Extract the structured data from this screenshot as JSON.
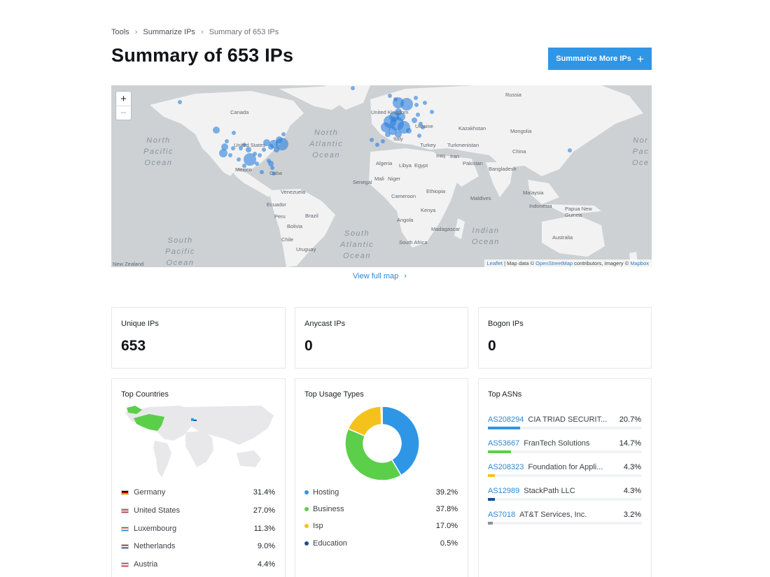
{
  "breadcrumb": {
    "items": [
      "Tools",
      "Summarize IPs"
    ],
    "current": "Summary of 653 IPs"
  },
  "page_title": "Summary of 653 IPs",
  "actions": {
    "summarize_more": "Summarize More IPs"
  },
  "map": {
    "zoom_in": "+",
    "zoom_out": "−",
    "attribution": {
      "leaflet": "Leaflet",
      "mid": " | Map data © ",
      "osm": "OpenStreetMap",
      "mid2": " contributors, Imagery © ",
      "mapbox": "Mapbox"
    },
    "labels": {
      "canada": "Canada",
      "russia": "Russia",
      "united_states": "United States",
      "mexico": "Mexico",
      "cuba": "Cuba",
      "venezuela": "Venezuela",
      "ecuador": "Ecuador",
      "peru": "Peru",
      "bolivia": "Bolivia",
      "brazil": "Brazil",
      "chile": "Chile",
      "uruguay": "Uruguay",
      "united_kingdom": "United Kingdom",
      "ukraine": "Ukraine",
      "kazakhstan": "Kazakhstan",
      "mongolia": "Mongolia",
      "turkey": "Turkey",
      "turkmenistan": "Turkmenistan",
      "iraq": "Iraq",
      "iran": "Iran",
      "pakistan": "Pakistan",
      "china": "China",
      "algeria": "Algeria",
      "libya": "Libya",
      "egypt": "Egypt",
      "senegal": "Senegal",
      "mali": "Mali",
      "niger": "Niger",
      "ethiopia": "Ethiopia",
      "kenya": "Kenya",
      "cameroon": "Cameroon",
      "angola": "Angola",
      "madagascar": "Madagascar",
      "south_africa": "South Africa",
      "bangladesh": "Bangladesh",
      "maldives": "Maldives",
      "malaysia": "Malaysia",
      "indonesia": "Indonesia",
      "papua_new_guinea": "Papua New Guinea",
      "australia": "Australia",
      "new_zealand": "New Zealand",
      "italy": "Italy"
    },
    "oceans": {
      "north_pacific": "North\nPacific\nOcean",
      "north_atlantic": "North\nAtlantic\nOcean",
      "south_pacific": "South\nPacific\nOcean",
      "south_atlantic": "South\nAtlantic\nOcean",
      "indian": "Indian\nOcean",
      "north_pacific_east": "Nor\nPac\nOce"
    }
  },
  "view_full_map": "View full map",
  "stats": [
    {
      "label": "Unique IPs",
      "value": "653"
    },
    {
      "label": "Anycast IPs",
      "value": "0"
    },
    {
      "label": "Bogon IPs",
      "value": "0"
    }
  ],
  "top_countries": {
    "title": "Top Countries",
    "items": [
      {
        "name": "Germany",
        "pct": "31.4%"
      },
      {
        "name": "United States",
        "pct": "27.0%"
      },
      {
        "name": "Luxembourg",
        "pct": "11.3%"
      },
      {
        "name": "Netherlands",
        "pct": "9.0%"
      },
      {
        "name": "Austria",
        "pct": "4.4%"
      }
    ]
  },
  "top_usage": {
    "title": "Top Usage Types",
    "items": [
      {
        "name": "Hosting",
        "pct": "39.2%",
        "value": 39.2,
        "color": "#2f96e6"
      },
      {
        "name": "Business",
        "pct": "37.8%",
        "value": 37.8,
        "color": "#5ccf4a"
      },
      {
        "name": "Isp",
        "pct": "17.0%",
        "value": 17.0,
        "color": "#f5c21b"
      },
      {
        "name": "Education",
        "pct": "0.5%",
        "value": 0.5,
        "color": "#1d4f91"
      }
    ]
  },
  "top_asns": {
    "title": "Top ASNs",
    "items": [
      {
        "asn": "AS208294",
        "name": "CIA TRIAD SECURIT...",
        "pct": "20.7%",
        "share": 0.207,
        "color": "#2f96e6"
      },
      {
        "asn": "AS53667",
        "name": "FranTech Solutions",
        "pct": "14.7%",
        "share": 0.147,
        "color": "#5ccf4a"
      },
      {
        "asn": "AS208323",
        "name": "Foundation for Appli...",
        "pct": "4.3%",
        "share": 0.043,
        "color": "#f5c21b"
      },
      {
        "asn": "AS12989",
        "name": "StackPath LLC",
        "pct": "4.3%",
        "share": 0.043,
        "color": "#1d4f91"
      },
      {
        "asn": "AS7018",
        "name": "AT&T Services, Inc.",
        "pct": "3.2%",
        "share": 0.032,
        "color": "#8a9099"
      }
    ]
  }
}
